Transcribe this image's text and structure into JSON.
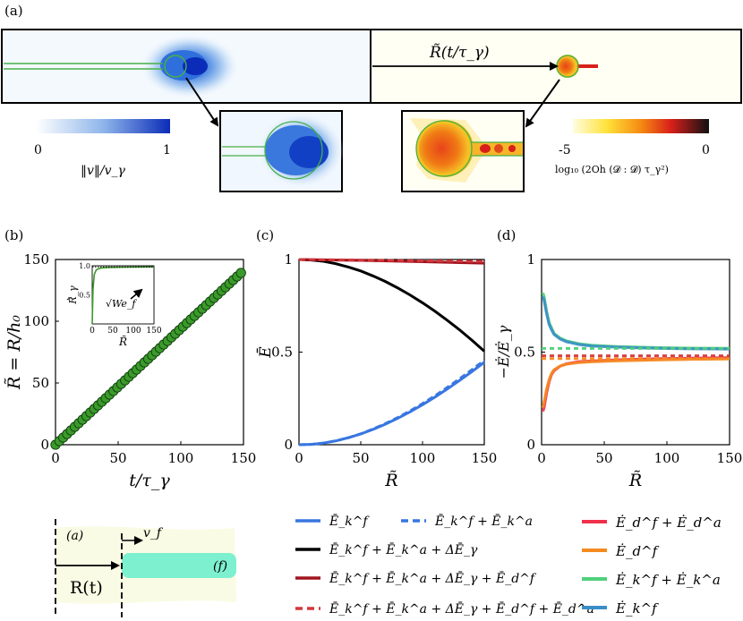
{
  "panel_a": {
    "label": "(a)",
    "arrow_label": "R̃(t/τ_γ)",
    "colorbar_left": {
      "min": "0",
      "max": "1",
      "label": "‖v‖/v_γ"
    },
    "colorbar_right": {
      "min": "-5",
      "max": "0",
      "label": "log₁₀ (2Oh (𝓓 : 𝓓) τ_γ²)"
    }
  },
  "panel_sketch": {
    "region_air": "(a)",
    "region_film": "(f)",
    "velocity": "v_f",
    "position": "R(t)"
  },
  "colors": {
    "blue": "#3876e0",
    "black": "#000000",
    "darkred": "#a0141e",
    "red": "#d4373c",
    "pink": "#f0304a",
    "orange": "#f58a1f",
    "green": "#4fd07a",
    "steel": "#3a8ec8",
    "ring": "#6fbf4a",
    "marker": "#3b9a2a"
  },
  "chart_data": [
    {
      "id": "b",
      "label": "(b)",
      "type": "scatter",
      "xlabel": "t/τ_γ",
      "ylabel": "R̃ = R/h₀",
      "xlim": [
        0,
        150
      ],
      "ylim": [
        0,
        150
      ],
      "xticks": [
        "0",
        "50",
        "100",
        "150"
      ],
      "yticks": [
        "0",
        "50",
        "100",
        "150"
      ],
      "series": [
        {
          "name": "R̃",
          "marker": "circle",
          "x_start": 0,
          "x_end": 148,
          "count": 49,
          "slope": 0.94
        }
      ],
      "inset": {
        "type": "line",
        "xlabel": "R̃",
        "ylabel": "Ṙ̃_γ",
        "xlim": [
          0,
          150
        ],
        "ylim": [
          0,
          1.0
        ],
        "xticks": [
          "0",
          "50",
          "100",
          "150"
        ],
        "yticks": [
          "0.5",
          "1.0"
        ],
        "annotation": "√We_f",
        "series": [
          {
            "name": "Ṙ̃",
            "x": [
              0,
              2,
              5,
              10,
              20,
              40,
              80,
              150
            ],
            "y": [
              0.0,
              0.6,
              0.85,
              0.93,
              0.96,
              0.97,
              0.975,
              0.98
            ]
          },
          {
            "name": "√We_f",
            "style": "dotted",
            "x": [
              0,
              150
            ],
            "y": [
              0.98,
              0.98
            ]
          }
        ]
      }
    },
    {
      "id": "c",
      "label": "(c)",
      "type": "line",
      "xlabel": "R̃",
      "ylabel": "Ē",
      "xlim": [
        0,
        150
      ],
      "ylim": [
        0,
        1
      ],
      "xticks": [
        "0",
        "50",
        "100",
        "150"
      ],
      "yticks": [
        "0",
        "0.5",
        "1"
      ],
      "series": [
        {
          "name": "Ē_k^f",
          "x": [
            0,
            10,
            20,
            30,
            40,
            50,
            60,
            70,
            80,
            90,
            100,
            110,
            120,
            130,
            140,
            150
          ],
          "y": [
            0,
            0.002,
            0.009,
            0.021,
            0.038,
            0.058,
            0.083,
            0.111,
            0.143,
            0.178,
            0.216,
            0.257,
            0.301,
            0.347,
            0.395,
            0.445
          ]
        },
        {
          "name": "Ē_k^f + Ē_k^a",
          "style": "dashed",
          "x": [
            0,
            10,
            20,
            30,
            40,
            50,
            60,
            70,
            80,
            90,
            100,
            110,
            120,
            130,
            140,
            150
          ],
          "y": [
            0,
            0.002,
            0.009,
            0.021,
            0.038,
            0.059,
            0.085,
            0.114,
            0.147,
            0.183,
            0.222,
            0.264,
            0.309,
            0.356,
            0.405,
            0.455
          ]
        },
        {
          "name": "Ē_k^f + Ē_k^a + ΔĒ_γ",
          "x": [
            0,
            10,
            20,
            30,
            40,
            50,
            60,
            70,
            80,
            90,
            100,
            110,
            120,
            130,
            140,
            150
          ],
          "y": [
            1.0,
            0.997,
            0.99,
            0.977,
            0.959,
            0.938,
            0.911,
            0.881,
            0.846,
            0.808,
            0.766,
            0.721,
            0.672,
            0.62,
            0.564,
            0.505
          ]
        },
        {
          "name": "Ē_k^f + Ē_k^a + ΔĒ_γ + Ē_d^f",
          "x": [
            0,
            50,
            100,
            150
          ],
          "y": [
            1.0,
            0.995,
            0.988,
            0.98
          ]
        },
        {
          "name": "Ē_k^f + Ē_k^a + ΔĒ_γ + Ē_d^f + Ē_d^a",
          "style": "dashed",
          "x": [
            0,
            50,
            100,
            150
          ],
          "y": [
            1.0,
            0.997,
            0.993,
            0.99
          ]
        }
      ]
    },
    {
      "id": "d",
      "label": "(d)",
      "type": "line",
      "xlabel": "R̃",
      "ylabel": "−Ė/Ė_γ",
      "xlim": [
        0,
        150
      ],
      "ylim": [
        0,
        1
      ],
      "xticks": [
        "0",
        "50",
        "100",
        "150"
      ],
      "yticks": [
        "0",
        "0.5",
        "1"
      ],
      "series": [
        {
          "name": "Ė_d^f + Ė_d^a",
          "x": [
            1,
            2,
            4,
            6,
            8,
            10,
            15,
            20,
            30,
            40,
            60,
            80,
            100,
            120,
            150
          ],
          "y": [
            0.18,
            0.2,
            0.28,
            0.34,
            0.38,
            0.4,
            0.425,
            0.437,
            0.448,
            0.452,
            0.458,
            0.462,
            0.465,
            0.467,
            0.47
          ]
        },
        {
          "name": "Ė_d^f",
          "x": [
            1,
            2,
            4,
            6,
            8,
            10,
            15,
            20,
            30,
            40,
            60,
            80,
            100,
            120,
            150
          ],
          "y": [
            0.2,
            0.23,
            0.3,
            0.35,
            0.385,
            0.405,
            0.425,
            0.435,
            0.444,
            0.448,
            0.453,
            0.456,
            0.459,
            0.461,
            0.463
          ]
        },
        {
          "name": "Ė_k^f + Ė_k^a",
          "x": [
            1,
            2,
            4,
            6,
            8,
            10,
            15,
            20,
            30,
            40,
            60,
            80,
            100,
            120,
            150
          ],
          "y": [
            0.82,
            0.8,
            0.72,
            0.66,
            0.63,
            0.6,
            0.575,
            0.56,
            0.545,
            0.537,
            0.53,
            0.526,
            0.523,
            0.521,
            0.52
          ]
        },
        {
          "name": "Ė_k^f",
          "x": [
            1,
            2,
            4,
            6,
            8,
            10,
            15,
            20,
            30,
            40,
            60,
            80,
            100,
            120,
            150
          ],
          "y": [
            0.8,
            0.78,
            0.71,
            0.65,
            0.62,
            0.595,
            0.57,
            0.556,
            0.541,
            0.533,
            0.527,
            0.523,
            0.52,
            0.518,
            0.517
          ]
        },
        {
          "name": "ref-green",
          "style": "dotted",
          "x": [
            0,
            150
          ],
          "y": [
            0.52,
            0.52
          ]
        },
        {
          "name": "ref-red",
          "style": "dotted",
          "x": [
            0,
            150
          ],
          "y": [
            0.48,
            0.48
          ]
        },
        {
          "name": "ref-orange",
          "style": "dotted",
          "x": [
            0,
            150
          ],
          "y": [
            0.465,
            0.465
          ]
        }
      ]
    }
  ],
  "legend_c": [
    {
      "text": "Ē_k^f",
      "color": "#3876e0",
      "style": "solid"
    },
    {
      "text": "Ē_k^f + Ē_k^a",
      "color": "#3876e0",
      "style": "dashed"
    },
    {
      "text": "Ē_k^f + Ē_k^a + ΔĒ_γ",
      "color": "#000000",
      "style": "solid"
    },
    {
      "text": "Ē_k^f + Ē_k^a + ΔĒ_γ + Ē_d^f",
      "color": "#a0141e",
      "style": "solid"
    },
    {
      "text": "Ē_k^f + Ē_k^a + ΔĒ_γ + Ē_d^f + Ē_d^a",
      "color": "#d4373c",
      "style": "dashed"
    }
  ],
  "legend_d": [
    {
      "text": "Ė_d^f + Ė_d^a",
      "color": "#f0304a"
    },
    {
      "text": "Ė_d^f",
      "color": "#f58a1f"
    },
    {
      "text": "Ė_k^f + Ė_k^a",
      "color": "#4fd07a"
    },
    {
      "text": "Ė_k^f",
      "color": "#3a8ec8"
    }
  ]
}
